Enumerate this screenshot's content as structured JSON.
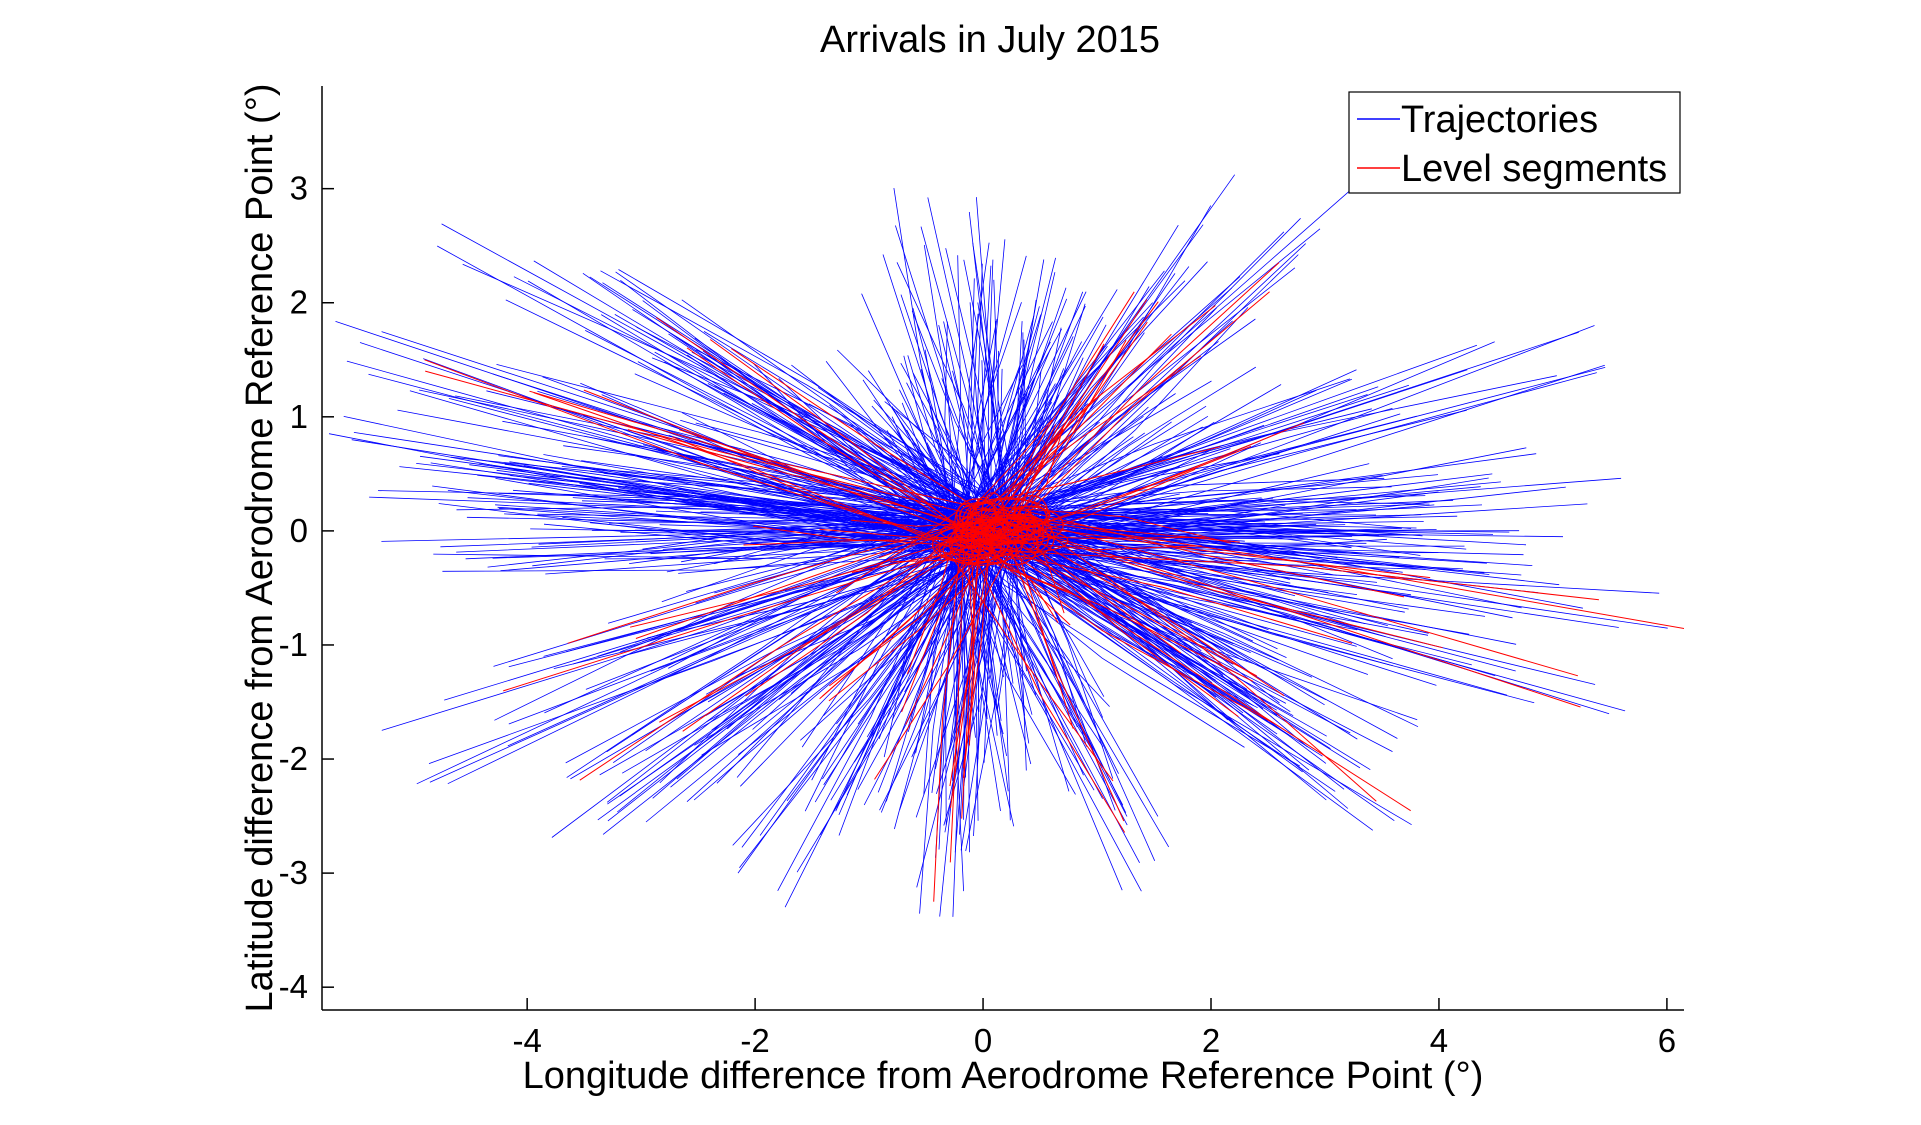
{
  "chart_data": {
    "type": "line",
    "title": "Arrivals in July 2015",
    "xlabel": "Longitude difference from Aerodrome Reference Point (°)",
    "ylabel": "Latitude difference from Aerodrome Reference Point (°)",
    "xlim": [
      -5.8,
      6.15
    ],
    "ylim": [
      -4.2,
      3.9
    ],
    "xticks": [
      -4,
      -2,
      0,
      2,
      4,
      6
    ],
    "yticks": [
      -4,
      -3,
      -2,
      -1,
      0,
      1,
      2,
      3
    ],
    "grid": false,
    "legend_position": "top-right",
    "series": [
      {
        "name": "Trajectories",
        "color": "#0000ff",
        "endpoints": [
          [
            -5.8,
            1.65
          ],
          [
            -5.5,
            0.95
          ],
          [
            -5.7,
            0.6
          ],
          [
            -5.4,
            0.5
          ],
          [
            -5.3,
            0.0
          ],
          [
            -4.9,
            2.6
          ],
          [
            -4.5,
            1.4
          ],
          [
            -4.6,
            0.8
          ],
          [
            -4.8,
            -0.3
          ],
          [
            -5.3,
            -1.8
          ],
          [
            -4.9,
            -2.1
          ],
          [
            -4.1,
            -2.6
          ],
          [
            -3.6,
            -2.7
          ],
          [
            -3.7,
            2.3
          ],
          [
            -3.2,
            2.1
          ],
          [
            -2.8,
            -2.5
          ],
          [
            -2.1,
            -2.9
          ],
          [
            -1.8,
            -3.2
          ],
          [
            -1.6,
            1.6
          ],
          [
            -1.2,
            1.1
          ],
          [
            -0.7,
            2.9
          ],
          [
            -1.0,
            1.9
          ],
          [
            -0.5,
            -3.3
          ],
          [
            -0.35,
            -3.35
          ],
          [
            -0.2,
            2.8
          ],
          [
            0.3,
            2.6
          ],
          [
            0.6,
            2.3
          ],
          [
            0.9,
            2.2
          ],
          [
            2.1,
            3.1
          ],
          [
            1.3,
            1.9
          ],
          [
            3.3,
            2.9
          ],
          [
            2.4,
            1.3
          ],
          [
            3.7,
            1.3
          ],
          [
            5.7,
            1.75
          ],
          [
            4.9,
            0.5
          ],
          [
            5.5,
            0.25
          ],
          [
            5.2,
            -0.3
          ],
          [
            6.15,
            -0.8
          ],
          [
            5.7,
            -1.55
          ],
          [
            4.9,
            -1.0
          ],
          [
            4.0,
            -1.7
          ],
          [
            3.8,
            -2.7
          ],
          [
            3.7,
            -2.5
          ],
          [
            3.5,
            -1.9
          ],
          [
            2.9,
            -1.6
          ],
          [
            1.5,
            -3.05
          ],
          [
            1.2,
            -2.5
          ],
          [
            0.3,
            -2.6
          ],
          [
            0.0,
            -2.0
          ],
          [
            -1.0,
            -2.7
          ],
          [
            4.2,
            0.0
          ],
          [
            4.6,
            0.05
          ],
          [
            2.6,
            0.1
          ],
          [
            -3.5,
            0.1
          ],
          [
            -2.9,
            -0.5
          ]
        ]
      },
      {
        "name": "Level segments",
        "color": "#ff0000",
        "endpoints": [
          [
            -5.8,
            1.65
          ],
          [
            -4.0,
            1.3
          ],
          [
            -3.6,
            2.3
          ],
          [
            -4.8,
            -1.5
          ],
          [
            -3.8,
            -2.3
          ],
          [
            -2.0,
            -2.0
          ],
          [
            -1.0,
            -2.3
          ],
          [
            -0.35,
            -3.3
          ],
          [
            -0.3,
            -2.7
          ],
          [
            1.7,
            2.0
          ],
          [
            2.0,
            3.0
          ],
          [
            3.2,
            2.9
          ],
          [
            3.0,
            1.0
          ],
          [
            6.15,
            -0.8
          ],
          [
            5.5,
            -1.5
          ],
          [
            3.7,
            -2.5
          ],
          [
            2.9,
            -1.6
          ],
          [
            1.5,
            -3.0
          ],
          [
            1.1,
            -1.1
          ],
          [
            -2.2,
            0.0
          ],
          [
            2.5,
            0.0
          ],
          [
            -1.5,
            -0.5
          ],
          [
            0.9,
            1.2
          ]
        ]
      }
    ]
  }
}
